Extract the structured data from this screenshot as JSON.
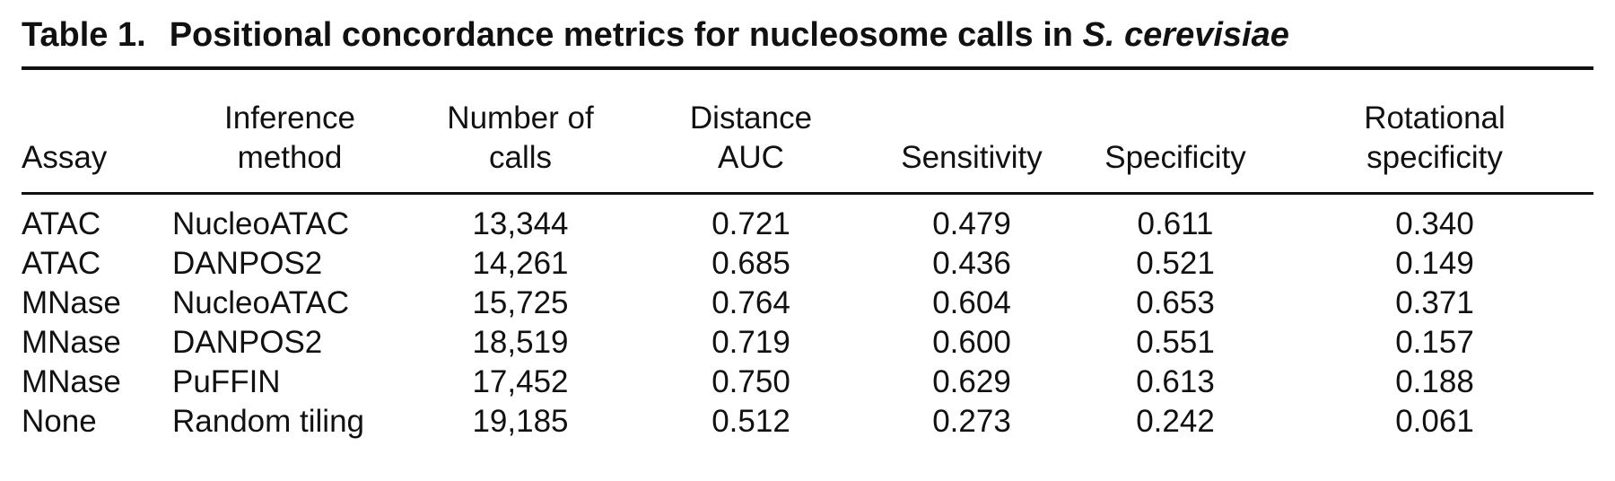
{
  "caption": {
    "label": "Table 1.",
    "title": "Positional concordance metrics for nucleosome calls in",
    "species": "S. cerevisiae"
  },
  "table": {
    "headers": [
      [
        "Assay"
      ],
      [
        "Inference",
        "method"
      ],
      [
        "Number of",
        "calls"
      ],
      [
        "Distance",
        "AUC"
      ],
      [
        "Sensitivity"
      ],
      [
        "Specificity"
      ],
      [
        "Rotational",
        "specificity"
      ]
    ],
    "rows": [
      [
        "ATAC",
        "NucleoATAC",
        "13,344",
        "0.721",
        "0.479",
        "0.611",
        "0.340"
      ],
      [
        "ATAC",
        "DANPOS2",
        "14,261",
        "0.685",
        "0.436",
        "0.521",
        "0.149"
      ],
      [
        "MNase",
        "NucleoATAC",
        "15,725",
        "0.764",
        "0.604",
        "0.653",
        "0.371"
      ],
      [
        "MNase",
        "DANPOS2",
        "18,519",
        "0.719",
        "0.600",
        "0.551",
        "0.157"
      ],
      [
        "MNase",
        "PuFFIN",
        "17,452",
        "0.750",
        "0.629",
        "0.613",
        "0.188"
      ],
      [
        "None",
        "Random tiling",
        "19,185",
        "0.512",
        "0.273",
        "0.242",
        "0.061"
      ]
    ]
  }
}
